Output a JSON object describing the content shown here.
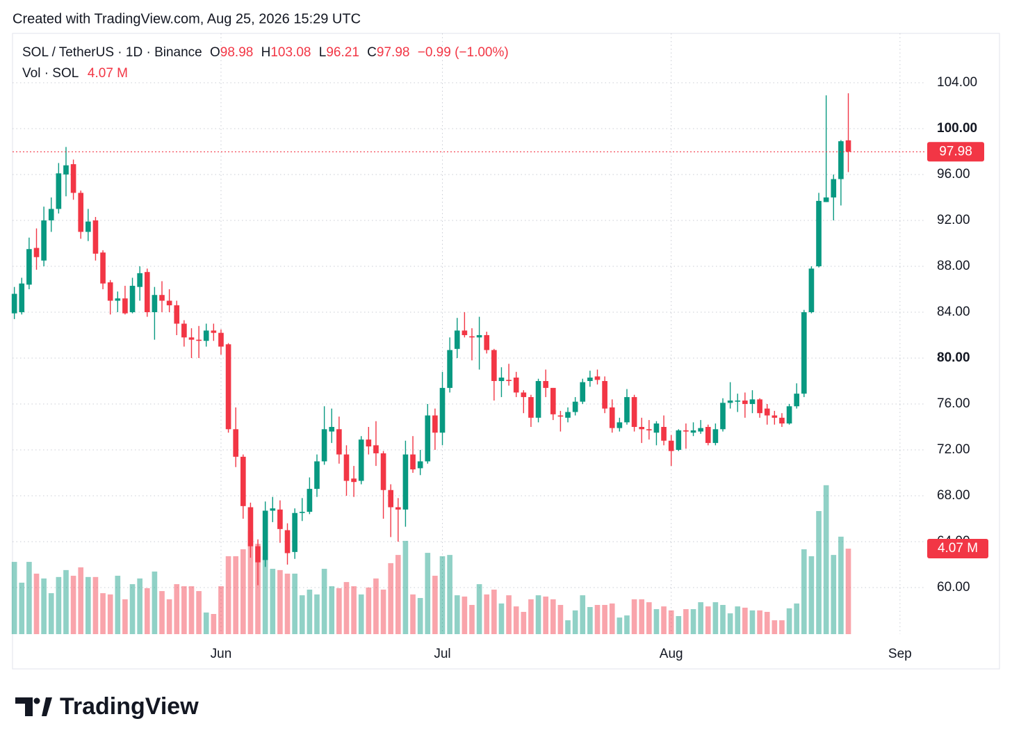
{
  "watermark": "Created with TradingView.com, Aug 25, 2026 15:29 UTC",
  "footer": {
    "brand": "TradingView"
  },
  "chart_data": {
    "type": "candlestick",
    "legend": {
      "symbol": "SOL / TetherUS · 1D · Binance",
      "open_label": "O",
      "high_label": "H",
      "low_label": "L",
      "close_label": "C",
      "change": "−0.99 (−1.00%)"
    },
    "up_color": "#089981",
    "down_color": "#f23645",
    "xlim": [
      -0.25,
      123.5
    ],
    "xticks": [
      {
        "value": 28,
        "label": "Jun"
      },
      {
        "value": 58,
        "label": "Jul"
      },
      {
        "value": 89,
        "label": "Aug"
      },
      {
        "value": 120,
        "label": "Sep"
      }
    ],
    "ylim": [
      55.94,
      108.3
    ],
    "yticks": [
      {
        "value": 60,
        "label": "60.00"
      },
      {
        "value": 64,
        "label": "64.00"
      },
      {
        "value": 68,
        "label": "68.00"
      },
      {
        "value": 72,
        "label": "72.00"
      },
      {
        "value": 76,
        "label": "76.00"
      },
      {
        "value": 80,
        "label": "80.00",
        "bold": true
      },
      {
        "value": 84,
        "label": "84.00"
      },
      {
        "value": 88,
        "label": "88.00"
      },
      {
        "value": 92,
        "label": "92.00"
      },
      {
        "value": 96,
        "label": "96.00"
      },
      {
        "value": 100,
        "label": "100.00",
        "bold": true
      },
      {
        "value": 104,
        "label": "104.00"
      }
    ],
    "grid": true,
    "open": [
      83.9,
      84.0,
      86.4,
      89.6,
      88.5,
      92.0,
      93.0,
      96.0,
      96.9,
      94.4,
      91.0,
      92.0,
      89.2,
      86.6,
      85.0,
      85.2,
      84.0,
      86.2,
      87.5,
      84.0,
      85.5,
      85.0,
      84.6,
      83.0,
      81.8,
      81.6,
      81.5,
      82.4,
      82.2,
      81.2,
      73.8,
      71.4,
      67.0,
      63.6,
      62.4,
      66.7,
      66.8,
      65.0,
      63.1,
      66.5,
      66.6,
      68.6,
      71.0,
      73.6,
      73.8,
      71.6,
      69.5,
      69.3,
      72.9,
      72.4,
      71.7,
      68.5,
      67.0,
      66.8,
      71.6,
      70.4,
      71.0,
      75.0,
      73.5,
      77.4,
      80.8,
      82.4,
      81.9,
      81.8,
      82.0,
      80.7,
      78.0,
      78.1,
      78.3,
      77.0,
      76.6,
      74.8,
      78.0,
      77.4,
      75.0,
      74.8,
      75.3,
      76.2,
      78.0,
      78.4,
      78.0,
      75.7,
      73.9,
      74.4,
      76.6,
      74.0,
      73.8,
      73.5,
      74.0,
      72.8,
      72.0,
      73.7,
      73.5,
      73.6,
      74.0,
      72.6,
      73.8,
      76.1,
      76.2,
      76.3,
      76.0,
      76.4,
      75.6,
      75.0,
      74.8,
      74.3,
      75.8,
      76.9,
      84.0,
      88.0,
      93.6,
      94.0,
      95.6,
      98.98
    ],
    "high": [
      86.2,
      87.0,
      90.5,
      91.3,
      93.2,
      94.0,
      97.0,
      98.4,
      97.3,
      94.6,
      93.0,
      92.3,
      89.4,
      86.8,
      85.8,
      86.3,
      87.0,
      88.0,
      87.8,
      86.2,
      86.7,
      86.0,
      85.0,
      83.3,
      82.6,
      82.8,
      83.0,
      83.0,
      82.5,
      81.3,
      75.7,
      71.6,
      67.4,
      64.2,
      67.5,
      67.9,
      67.6,
      65.6,
      66.9,
      67.8,
      69.6,
      71.6,
      75.8,
      75.6,
      74.9,
      72.4,
      70.6,
      73.2,
      74.0,
      74.5,
      71.9,
      69.0,
      67.8,
      72.8,
      73.2,
      72.0,
      76.0,
      75.6,
      78.8,
      81.8,
      83.5,
      84.0,
      82.6,
      83.6,
      82.3,
      80.8,
      79.2,
      79.5,
      78.8,
      77.2,
      76.8,
      78.2,
      79.0,
      77.4,
      75.4,
      75.7,
      76.6,
      78.2,
      78.9,
      79.0,
      78.4,
      76.4,
      74.8,
      77.3,
      76.8,
      74.8,
      74.6,
      74.5,
      75.0,
      73.3,
      73.8,
      74.3,
      74.4,
      74.6,
      74.2,
      74.3,
      76.5,
      77.9,
      76.9,
      77.0,
      77.2,
      76.5,
      76.0,
      75.4,
      75.2,
      76.0,
      77.8,
      84.2,
      88.0,
      94.4,
      102.9,
      96.0,
      99.0,
      103.08
    ],
    "low": [
      83.4,
      83.8,
      86.0,
      87.7,
      88.0,
      91.0,
      92.6,
      94.1,
      93.8,
      90.4,
      90.2,
      88.5,
      86.0,
      83.8,
      84.0,
      83.8,
      83.9,
      85.0,
      83.6,
      81.6,
      84.0,
      84.0,
      82.0,
      81.0,
      80.0,
      80.0,
      81.0,
      81.5,
      80.3,
      73.5,
      70.5,
      66.0,
      62.6,
      60.2,
      61.8,
      65.7,
      63.9,
      62.0,
      62.5,
      65.8,
      66.4,
      67.9,
      70.7,
      72.6,
      70.8,
      68.0,
      67.9,
      69.0,
      71.6,
      70.6,
      66.0,
      64.4,
      64.0,
      65.3,
      70.0,
      69.8,
      70.8,
      72.0,
      72.4,
      77.0,
      80.0,
      81.8,
      79.8,
      79.0,
      80.4,
      76.3,
      76.6,
      77.6,
      76.6,
      75.2,
      74.0,
      74.4,
      76.6,
      74.6,
      73.6,
      74.4,
      75.0,
      76.0,
      77.5,
      77.7,
      75.2,
      73.5,
      73.6,
      74.2,
      73.6,
      72.6,
      72.9,
      72.4,
      72.4,
      70.6,
      71.9,
      72.1,
      73.2,
      73.4,
      72.4,
      72.4,
      73.6,
      75.6,
      75.3,
      74.8,
      75.2,
      74.8,
      74.2,
      74.2,
      74.0,
      74.2,
      75.6,
      76.6,
      83.9,
      87.9,
      93.6,
      92.0,
      93.3,
      96.21
    ],
    "close": [
      85.6,
      86.5,
      89.5,
      88.8,
      92.0,
      93.0,
      96.1,
      96.8,
      94.4,
      91.0,
      91.9,
      89.1,
      86.5,
      85.0,
      85.2,
      83.9,
      86.3,
      87.4,
      84.0,
      85.5,
      85.0,
      84.6,
      83.0,
      81.8,
      81.6,
      81.5,
      82.4,
      82.2,
      81.0,
      73.8,
      71.4,
      67.1,
      63.6,
      62.2,
      66.7,
      66.9,
      65.1,
      63.0,
      66.5,
      66.6,
      68.6,
      71.0,
      73.8,
      74.0,
      71.6,
      69.3,
      69.2,
      72.9,
      72.3,
      71.7,
      68.5,
      67.0,
      66.8,
      71.6,
      70.3,
      71.0,
      75.0,
      73.5,
      77.4,
      80.7,
      82.4,
      82.0,
      81.8,
      82.0,
      80.7,
      78.0,
      78.3,
      78.0,
      77.0,
      76.6,
      74.8,
      78.0,
      77.4,
      75.1,
      74.9,
      75.3,
      76.2,
      77.9,
      78.3,
      78.1,
      75.6,
      73.9,
      74.4,
      76.6,
      74.0,
      73.8,
      73.7,
      74.3,
      72.8,
      71.9,
      73.7,
      73.6,
      73.7,
      73.9,
      72.6,
      73.8,
      76.1,
      76.3,
      76.3,
      76.0,
      76.4,
      75.2,
      75.0,
      74.8,
      74.3,
      75.8,
      76.9,
      84.0,
      87.8,
      93.7,
      94.0,
      95.6,
      98.9,
      97.98
    ],
    "volume": {
      "name": "Vol · SOL",
      "last_label": "4.07 M",
      "y2lim": [
        0,
        28.6
      ],
      "values": [
        3.44,
        2.45,
        3.44,
        2.88,
        2.65,
        1.95,
        2.72,
        3.05,
        2.78,
        3.18,
        2.72,
        2.72,
        1.95,
        1.89,
        2.78,
        1.66,
        2.38,
        2.65,
        2.19,
        2.98,
        2.05,
        1.66,
        2.38,
        2.28,
        2.28,
        2.05,
        1.03,
        0.96,
        2.28,
        3.71,
        3.71,
        4.04,
        4.9,
        4.3,
        3.71,
        3.11,
        3.05,
        2.88,
        2.88,
        1.85,
        2.12,
        1.89,
        3.11,
        2.28,
        2.19,
        2.48,
        2.28,
        1.89,
        2.22,
        2.65,
        2.12,
        3.38,
        3.77,
        4.44,
        1.89,
        1.72,
        3.87,
        2.78,
        3.71,
        3.77,
        1.85,
        1.79,
        1.39,
        2.38,
        1.89,
        2.12,
        1.46,
        1.85,
        1.32,
        1.06,
        1.66,
        1.85,
        1.79,
        1.66,
        1.39,
        0.66,
        1.13,
        1.85,
        1.29,
        1.39,
        1.39,
        1.46,
        0.79,
        0.89,
        1.66,
        1.66,
        1.52,
        1.19,
        1.32,
        1.13,
        0.86,
        1.19,
        1.19,
        1.52,
        1.32,
        1.52,
        1.39,
        0.99,
        1.32,
        1.26,
        1.13,
        1.13,
        1.06,
        0.66,
        0.66,
        1.23,
        1.46,
        4.04,
        3.71,
        5.86,
        7.09,
        3.77,
        4.64,
        4.07
      ]
    }
  }
}
